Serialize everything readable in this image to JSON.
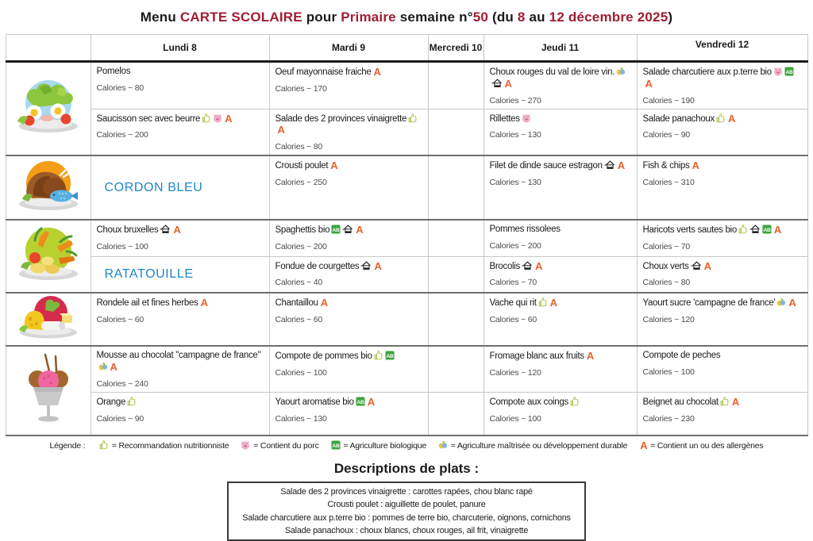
{
  "title": {
    "segments": [
      {
        "text": "Menu ",
        "accent": false
      },
      {
        "text": "CARTE SCOLAIRE",
        "accent": true
      },
      {
        "text": " pour ",
        "accent": false
      },
      {
        "text": "Primaire",
        "accent": true
      },
      {
        "text": " semaine n°",
        "accent": false
      },
      {
        "text": "50",
        "accent": true
      },
      {
        "text": " (du ",
        "accent": false
      },
      {
        "text": "8",
        "accent": true
      },
      {
        "text": " au ",
        "accent": false
      },
      {
        "text": "12 décembre 2025",
        "accent": true
      },
      {
        "text": ")",
        "accent": false
      }
    ]
  },
  "colors": {
    "title_accent_red": "#a01d33",
    "featured_blue": "#1e86c8",
    "allergen_orange": "#e7612c",
    "organic_green": "#3fa43f",
    "pork_pink": "#f3b8cf",
    "nutrition_green": "#a9bf45",
    "sustainable_yellow": "#e9c637",
    "sustainable_blue": "#85b3dc"
  },
  "table": {
    "day_headers": [
      "Lundi 8",
      "Mardi 9",
      "Mercredi 10",
      "Jeudi 11",
      "Vendredi 12"
    ],
    "courses": [
      {
        "icon": "starter-plate-icon",
        "rows": [
          [
            {
              "name": "Pomelos",
              "calories": "Calories ~ 80",
              "badges": []
            },
            {
              "name": "Oeuf mayonnaise fraiche",
              "calories": "Calories ~ 170",
              "badges": [
                "allergen"
              ]
            },
            null,
            {
              "name": "Choux rouges du val de loire vin.",
              "calories": "Calories ~ 270",
              "badges": [
                "sustainable",
                "homemade",
                "allergen"
              ]
            },
            {
              "name": "Salade charcutiere aux p.terre bio",
              "calories": "Calories ~ 190",
              "badges": [
                "pork",
                "organic",
                "allergen"
              ]
            }
          ],
          [
            {
              "name": "Saucisson sec avec beurre",
              "calories": "Calories ~ 200",
              "badges": [
                "nutrition",
                "pork",
                "allergen"
              ]
            },
            {
              "name": "Salade des 2 provinces vinaigrette",
              "calories": "Calories ~ 80",
              "badges": [
                "nutrition",
                "allergen"
              ]
            },
            null,
            {
              "name": "Rillettes",
              "calories": "Calories ~ 130",
              "badges": [
                "pork"
              ]
            },
            {
              "name": "Salade panachoux",
              "calories": "Calories ~ 90",
              "badges": [
                "nutrition",
                "allergen"
              ]
            }
          ]
        ]
      },
      {
        "icon": "main-course-icon",
        "rows": [
          [
            {
              "special": "CORDON BLEU"
            },
            {
              "name": "Crousti poulet",
              "calories": "Calories ~ 250",
              "badges": [
                "allergen"
              ]
            },
            null,
            {
              "name": "Filet de dinde sauce estragon",
              "calories": "Calories ~ 130",
              "badges": [
                "homemade",
                "allergen"
              ]
            },
            {
              "name": "Fish & chips",
              "calories": "Calories ~ 310",
              "badges": [
                "allergen"
              ]
            }
          ]
        ]
      },
      {
        "icon": "vegetables-icon",
        "rows": [
          [
            {
              "name": "Choux bruxelles",
              "calories": "Calories ~ 100",
              "badges": [
                "homemade",
                "allergen"
              ]
            },
            {
              "name": "Spaghettis bio",
              "calories": "Calories ~ 200",
              "badges": [
                "organic",
                "homemade",
                "allergen"
              ]
            },
            null,
            {
              "name": "Pommes rissolees",
              "calories": "Calories ~ 200",
              "badges": []
            },
            {
              "name": "Haricots verts sautes bio",
              "calories": "Calories ~ 70",
              "badges": [
                "nutrition",
                "homemade",
                "organic",
                "allergen"
              ]
            }
          ],
          [
            {
              "special": "RATATOUILLE"
            },
            {
              "name": "Fondue de courgettes",
              "calories": "Calories ~ 40",
              "badges": [
                "homemade",
                "allergen"
              ]
            },
            null,
            {
              "name": "Brocolis",
              "calories": "Calories ~ 70",
              "badges": [
                "homemade",
                "allergen"
              ]
            },
            {
              "name": "Choux verts",
              "calories": "Calories ~ 80",
              "badges": [
                "homemade",
                "allergen"
              ]
            }
          ]
        ]
      },
      {
        "icon": "cheese-icon",
        "rows": [
          [
            {
              "name": "Rondele ail et fines herbes",
              "calories": "Calories ~ 60",
              "badges": [
                "allergen"
              ]
            },
            {
              "name": "Chantaillou",
              "calories": "Calories ~ 60",
              "badges": [
                "allergen"
              ]
            },
            null,
            {
              "name": "Vache qui rit",
              "calories": "Calories ~ 60",
              "badges": [
                "nutrition",
                "allergen"
              ]
            },
            {
              "name": "Yaourt sucre 'campagne de france'",
              "calories": "Calories ~ 120",
              "badges": [
                "sustainable",
                "allergen"
              ]
            }
          ]
        ]
      },
      {
        "icon": "dessert-icon",
        "rows": [
          [
            {
              "name": "Mousse au chocolat \"campagne de france\"",
              "calories": "Calories ~ 240",
              "badges": [
                "sustainable",
                "allergen"
              ]
            },
            {
              "name": "Compote de pommes bio",
              "calories": "Calories ~ 100",
              "badges": [
                "nutrition",
                "organic"
              ]
            },
            null,
            {
              "name": "Fromage blanc aux fruits",
              "calories": "Calories ~ 120",
              "badges": [
                "allergen"
              ]
            },
            {
              "name": "Compote de peches",
              "calories": "Calories ~ 100",
              "badges": []
            }
          ],
          [
            {
              "name": "Orange",
              "calories": "Calories ~ 90",
              "badges": [
                "nutrition"
              ]
            },
            {
              "name": "Yaourt aromatise bio",
              "calories": "Calories ~ 130",
              "badges": [
                "organic",
                "allergen"
              ]
            },
            null,
            {
              "name": "Compote aux coings",
              "calories": "Calories ~ 100",
              "badges": [
                "nutrition"
              ]
            },
            {
              "name": "Beignet au chocolat",
              "calories": "Calories ~ 230",
              "badges": [
                "nutrition",
                "allergen"
              ]
            }
          ]
        ]
      }
    ]
  },
  "badge_names": {
    "nutrition": "nutrition-thumb-icon",
    "pork": "pork-pig-icon",
    "organic": "organic-ab-icon",
    "sustainable": "sustainable-leaf-icon",
    "homemade": "homemade-house-icon",
    "allergen": "allergen-a-icon"
  },
  "legend": {
    "label": "Légende :",
    "items": [
      {
        "badge": "nutrition",
        "text": "= Recommandation nutritionniste"
      },
      {
        "badge": "pork",
        "text": "= Contient du porc"
      },
      {
        "badge": "organic",
        "text": "= Agriculture biologique"
      },
      {
        "badge": "sustainable",
        "text": "= Agriculture maîtrisée ou développement durable"
      },
      {
        "badge": "allergen",
        "text": "= Contient un ou des allergènes"
      }
    ]
  },
  "descriptions": {
    "title": "Descriptions de plats :",
    "lines": [
      "Salade des 2 provinces vinaigrette : carottes rapées, chou blanc rapé",
      "Crousti poulet : aiguillette de poulet, panure",
      "Salade charcutiere aux p.terre bio : pommes de terre bio, charcuterie, oignons, cornichons",
      "Salade panachoux : choux blancs, choux rouges, ail frit, vinaigrette"
    ]
  }
}
